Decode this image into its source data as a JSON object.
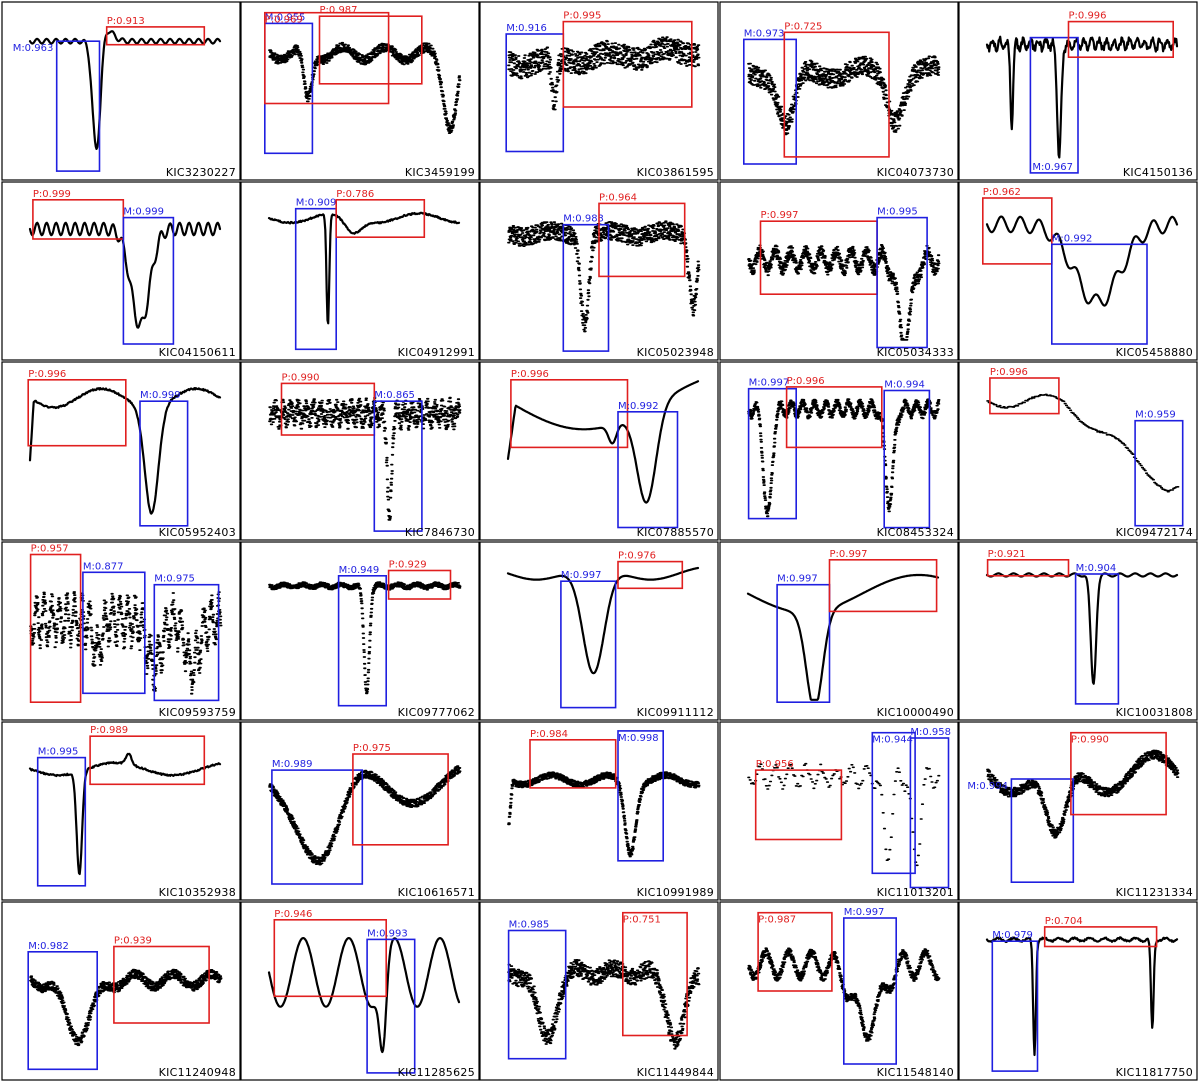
{
  "panels": [
    {
      "kic": "KIC3230227",
      "style": "line",
      "detections": [
        {
          "cls": "M",
          "score": "M:0.963",
          "side": "left"
        },
        {
          "cls": "P",
          "score": "P:0.913",
          "side": "right"
        }
      ]
    },
    {
      "kic": "KIC3459199",
      "style": "scatter",
      "detections": [
        {
          "cls": "M",
          "score": "M:0.955",
          "side": "left"
        },
        {
          "cls": "P",
          "score": "P:0.969",
          "side": "wide"
        },
        {
          "cls": "P",
          "score": "P:0.987",
          "side": "right"
        }
      ]
    },
    {
      "kic": "KIC03861595",
      "style": "scatter",
      "detections": [
        {
          "cls": "M",
          "score": "M:0.916",
          "side": "left"
        },
        {
          "cls": "P",
          "score": "P:0.995",
          "side": "right"
        }
      ]
    },
    {
      "kic": "KIC04073730",
      "style": "scatter",
      "detections": [
        {
          "cls": "M",
          "score": "M:0.973",
          "side": "left"
        },
        {
          "cls": "P",
          "score": "P:0.725",
          "side": "right"
        }
      ]
    },
    {
      "kic": "KIC4150136",
      "style": "line",
      "detections": [
        {
          "cls": "M",
          "score": "M:0.967",
          "side": "mid"
        },
        {
          "cls": "P",
          "score": "P:0.996",
          "side": "right"
        }
      ]
    },
    {
      "kic": "KIC04150611",
      "style": "line",
      "detections": [
        {
          "cls": "P",
          "score": "P:0.999",
          "side": "left"
        },
        {
          "cls": "M",
          "score": "M:0.999",
          "side": "mid"
        }
      ]
    },
    {
      "kic": "KIC04912991",
      "style": "line",
      "detections": [
        {
          "cls": "M",
          "score": "M:0.909",
          "side": "mid"
        },
        {
          "cls": "P",
          "score": "P:0.786",
          "side": "right"
        }
      ]
    },
    {
      "kic": "KIC05023948",
      "style": "scatter",
      "detections": [
        {
          "cls": "M",
          "score": "M:0.983",
          "side": "mid"
        },
        {
          "cls": "P",
          "score": "P:0.964",
          "side": "right"
        }
      ]
    },
    {
      "kic": "KIC05034333",
      "style": "scatter",
      "detections": [
        {
          "cls": "P",
          "score": "P:0.997",
          "side": "left"
        },
        {
          "cls": "M",
          "score": "M:0.995",
          "side": "right"
        }
      ]
    },
    {
      "kic": "KIC05458880",
      "style": "line",
      "detections": [
        {
          "cls": "P",
          "score": "P:0.962",
          "side": "left"
        },
        {
          "cls": "M",
          "score": "M:0.992",
          "side": "mid"
        }
      ]
    },
    {
      "kic": "KIC05952403",
      "style": "line",
      "detections": [
        {
          "cls": "P",
          "score": "P:0.996",
          "side": "left"
        },
        {
          "cls": "M",
          "score": "M:0.999",
          "side": "mid"
        }
      ]
    },
    {
      "kic": "KIC7846730",
      "style": "scatter",
      "detections": [
        {
          "cls": "P",
          "score": "P:0.990",
          "side": "left"
        },
        {
          "cls": "M",
          "score": "M:0.865",
          "side": "mid"
        }
      ]
    },
    {
      "kic": "KIC07885570",
      "style": "line",
      "detections": [
        {
          "cls": "P",
          "score": "P:0.996",
          "side": "left"
        },
        {
          "cls": "M",
          "score": "M:0.992",
          "side": "mid"
        }
      ]
    },
    {
      "kic": "KIC08453324",
      "style": "scatter",
      "detections": [
        {
          "cls": "M",
          "score": "M:0.997",
          "side": "left"
        },
        {
          "cls": "P",
          "score": "P:0.996",
          "side": "mid"
        },
        {
          "cls": "M",
          "score": "M:0.994",
          "side": "right"
        }
      ]
    },
    {
      "kic": "KIC09472174",
      "style": "dots",
      "detections": [
        {
          "cls": "P",
          "score": "P:0.996",
          "side": "left"
        },
        {
          "cls": "M",
          "score": "M:0.959",
          "side": "right"
        }
      ]
    },
    {
      "kic": "KIC09593759",
      "style": "scatter",
      "detections": [
        {
          "cls": "P",
          "score": "P:0.957",
          "side": "left"
        },
        {
          "cls": "M",
          "score": "M:0.877",
          "side": "mid"
        },
        {
          "cls": "M",
          "score": "M:0.975",
          "side": "right"
        }
      ]
    },
    {
      "kic": "KIC09777062",
      "style": "scatter",
      "detections": [
        {
          "cls": "M",
          "score": "M:0.949",
          "side": "mid"
        },
        {
          "cls": "P",
          "score": "P:0.929",
          "side": "right"
        }
      ]
    },
    {
      "kic": "KIC09911112",
      "style": "line",
      "detections": [
        {
          "cls": "M",
          "score": "M:0.997",
          "side": "mid"
        },
        {
          "cls": "P",
          "score": "P:0.976",
          "side": "right"
        }
      ]
    },
    {
      "kic": "KIC10000490",
      "style": "line",
      "detections": [
        {
          "cls": "M",
          "score": "M:0.997",
          "side": "mid"
        },
        {
          "cls": "P",
          "score": "P:0.997",
          "side": "right"
        }
      ]
    },
    {
      "kic": "KIC10031808",
      "style": "line",
      "detections": [
        {
          "cls": "P",
          "score": "P:0.921",
          "side": "left"
        },
        {
          "cls": "M",
          "score": "M:0.904",
          "side": "mid"
        }
      ]
    },
    {
      "kic": "KIC10352938",
      "style": "line",
      "detections": [
        {
          "cls": "M",
          "score": "M:0.995",
          "side": "left"
        },
        {
          "cls": "P",
          "score": "P:0.989",
          "side": "right"
        }
      ]
    },
    {
      "kic": "KIC10616571",
      "style": "scatter",
      "detections": [
        {
          "cls": "M",
          "score": "M:0.989",
          "side": "left"
        },
        {
          "cls": "P",
          "score": "P:0.975",
          "side": "right"
        }
      ]
    },
    {
      "kic": "KIC10991989",
      "style": "scatter",
      "detections": [
        {
          "cls": "P",
          "score": "P:0.984",
          "side": "left"
        },
        {
          "cls": "M",
          "score": "M:0.998",
          "side": "right"
        }
      ]
    },
    {
      "kic": "KIC11013201",
      "style": "dots",
      "detections": [
        {
          "cls": "P",
          "score": "P:0.956",
          "side": "left"
        },
        {
          "cls": "M",
          "score": "M:0.944",
          "side": "mid"
        },
        {
          "cls": "M",
          "score": "M:0.958",
          "side": "right"
        }
      ]
    },
    {
      "kic": "KIC11231334",
      "style": "scatter",
      "detections": [
        {
          "cls": "M",
          "score": "M:0.994",
          "side": "left"
        },
        {
          "cls": "P",
          "score": "P:0.990",
          "side": "right"
        }
      ]
    },
    {
      "kic": "KIC11240948",
      "style": "scatter",
      "detections": [
        {
          "cls": "M",
          "score": "M:0.982",
          "side": "left"
        },
        {
          "cls": "P",
          "score": "P:0.939",
          "side": "right"
        }
      ]
    },
    {
      "kic": "KIC11285625",
      "style": "line",
      "detections": [
        {
          "cls": "P",
          "score": "P:0.946",
          "side": "left"
        },
        {
          "cls": "M",
          "score": "M:0.993",
          "side": "right"
        }
      ]
    },
    {
      "kic": "KIC11449844",
      "style": "scatter",
      "detections": [
        {
          "cls": "M",
          "score": "M:0.985",
          "side": "left"
        },
        {
          "cls": "P",
          "score": "P:0.751",
          "side": "right"
        }
      ]
    },
    {
      "kic": "KIC11548140",
      "style": "scatter",
      "detections": [
        {
          "cls": "P",
          "score": "P:0.987",
          "side": "left"
        },
        {
          "cls": "M",
          "score": "M:0.997",
          "side": "mid"
        }
      ]
    },
    {
      "kic": "KIC11817750",
      "style": "line",
      "detections": [
        {
          "cls": "M",
          "score": "M:0.979",
          "side": "left"
        },
        {
          "cls": "P",
          "score": "P:0.704",
          "side": "right"
        }
      ]
    }
  ],
  "colors": {
    "M": "#1f1fe0",
    "P": "#e01f1f",
    "curve": "#000000",
    "border": "#000000"
  }
}
